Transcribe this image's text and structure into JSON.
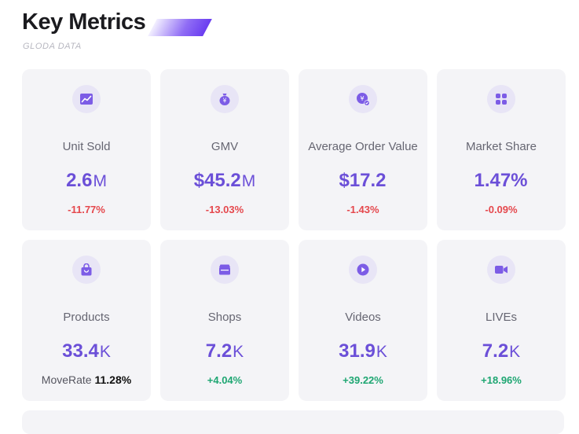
{
  "header": {
    "title": "Key Metrics",
    "subtitle": "GLODA DATA"
  },
  "colors": {
    "accent": "#6b4fd8",
    "negative": "#e5484d",
    "positive": "#1ea672",
    "card_bg": "#f4f4f7"
  },
  "cards": [
    {
      "icon": "chart-trend-icon",
      "label": "Unit Sold",
      "value": "2.6",
      "unit": "M",
      "change": "-11.77%",
      "direction": "negative"
    },
    {
      "icon": "money-bag-icon",
      "label": "GMV",
      "value": "$45.2",
      "unit": "M",
      "change": "-13.03%",
      "direction": "negative"
    },
    {
      "icon": "coin-check-icon",
      "label": "Average Order Value",
      "value": "$17.2",
      "unit": "",
      "change": "-1.43%",
      "direction": "negative"
    },
    {
      "icon": "grid-icon",
      "label": "Market Share",
      "value": "1.47%",
      "unit": "",
      "change": "-0.09%",
      "direction": "negative"
    },
    {
      "icon": "shopping-bag-icon",
      "label": "Products",
      "value": "33.4",
      "unit": "K",
      "moverate_label": "MoveRate",
      "moverate_value": "11.28%"
    },
    {
      "icon": "shop-icon",
      "label": "Shops",
      "value": "7.2",
      "unit": "K",
      "change": "+4.04%",
      "direction": "positive"
    },
    {
      "icon": "play-icon",
      "label": "Videos",
      "value": "31.9",
      "unit": "K",
      "change": "+39.22%",
      "direction": "positive"
    },
    {
      "icon": "video-camera-icon",
      "label": "LIVEs",
      "value": "7.2",
      "unit": "K",
      "change": "+18.96%",
      "direction": "positive"
    }
  ]
}
